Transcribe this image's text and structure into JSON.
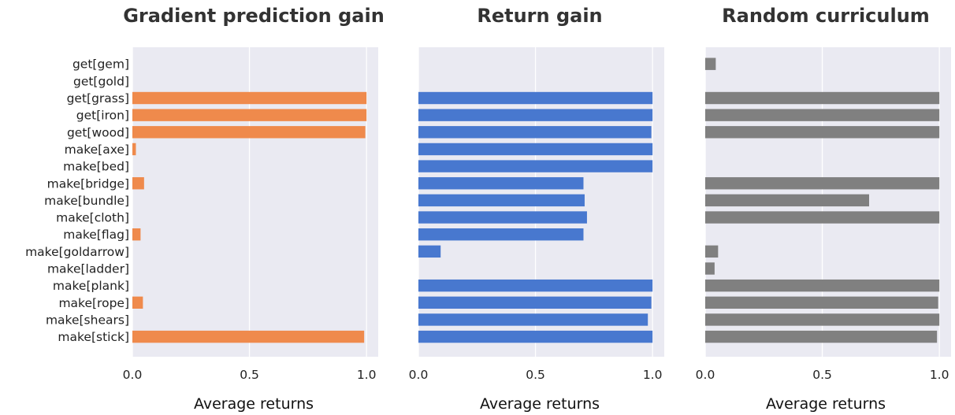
{
  "chart_data": [
    {
      "type": "bar",
      "orientation": "horizontal",
      "title": "Gradient prediction gain",
      "xlabel": "Average returns",
      "ylabel": "",
      "xlim": [
        0,
        1.05
      ],
      "xticks": [
        "0.0",
        "0.5",
        "1.0"
      ],
      "grid": true,
      "color": "#ef8a4c",
      "categories": [
        "get[gem]",
        "get[gold]",
        "get[grass]",
        "get[iron]",
        "get[wood]",
        "make[axe]",
        "make[bed]",
        "make[bridge]",
        "make[bundle]",
        "make[cloth]",
        "make[flag]",
        "make[goldarrow]",
        "make[ladder]",
        "make[plank]",
        "make[rope]",
        "make[shears]",
        "make[stick]"
      ],
      "values": [
        0,
        0,
        1.0,
        1.0,
        0.995,
        0.015,
        0,
        0.05,
        0,
        0,
        0.035,
        0,
        0,
        0,
        0.045,
        0,
        0.99
      ]
    },
    {
      "type": "bar",
      "orientation": "horizontal",
      "title": "Return gain",
      "xlabel": "Average returns",
      "ylabel": "",
      "xlim": [
        0,
        1.05
      ],
      "xticks": [
        "0.0",
        "0.5",
        "1.0"
      ],
      "grid": true,
      "color": "#4878cf",
      "categories": [
        "get[gem]",
        "get[gold]",
        "get[grass]",
        "get[iron]",
        "get[wood]",
        "make[axe]",
        "make[bed]",
        "make[bridge]",
        "make[bundle]",
        "make[cloth]",
        "make[flag]",
        "make[goldarrow]",
        "make[ladder]",
        "make[plank]",
        "make[rope]",
        "make[shears]",
        "make[stick]"
      ],
      "values": [
        0,
        0,
        1.0,
        1.0,
        0.995,
        1.0,
        1.0,
        0.705,
        0.71,
        0.72,
        0.705,
        0.095,
        0,
        1.0,
        0.995,
        0.98,
        1.0
      ]
    },
    {
      "type": "bar",
      "orientation": "horizontal",
      "title": "Random curriculum",
      "xlabel": "Average returns",
      "ylabel": "",
      "xlim": [
        0,
        1.05
      ],
      "xticks": [
        "0.0",
        "0.5",
        "1.0"
      ],
      "grid": true,
      "color": "#808080",
      "categories": [
        "get[gem]",
        "get[gold]",
        "get[grass]",
        "get[iron]",
        "get[wood]",
        "make[axe]",
        "make[bed]",
        "make[bridge]",
        "make[bundle]",
        "make[cloth]",
        "make[flag]",
        "make[goldarrow]",
        "make[ladder]",
        "make[plank]",
        "make[rope]",
        "make[shears]",
        "make[stick]"
      ],
      "values": [
        0.045,
        0,
        1.0,
        1.0,
        1.0,
        0,
        0,
        1.0,
        0.7,
        1.0,
        0,
        0.055,
        0.04,
        1.0,
        0.995,
        1.0,
        0.99
      ]
    }
  ]
}
